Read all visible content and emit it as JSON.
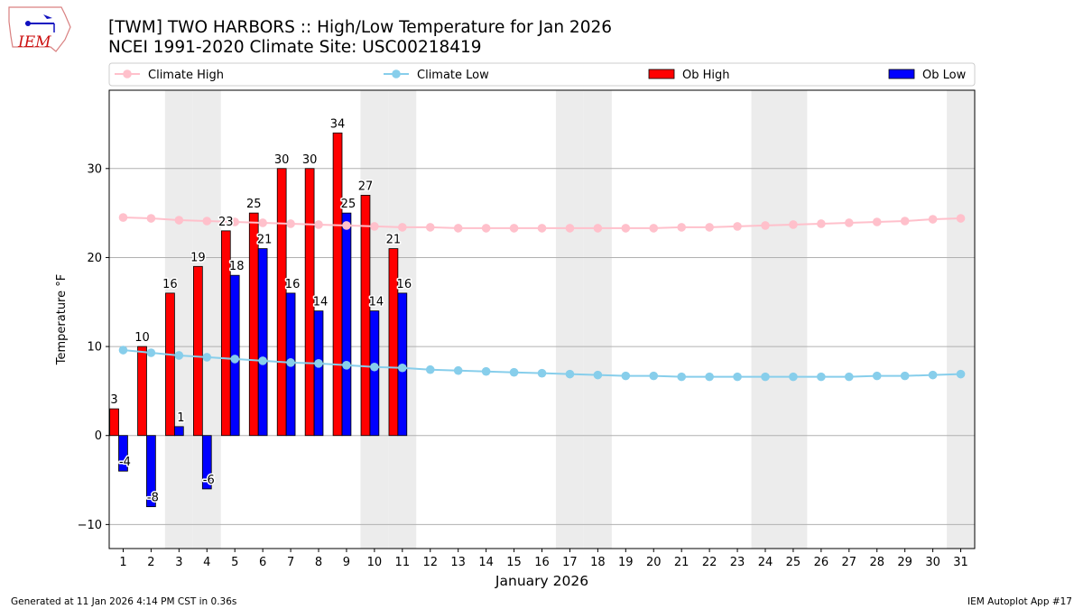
{
  "logo_text": "IEM",
  "title_line1": "[TWM] TWO HARBORS :: High/Low Temperature for Jan 2026",
  "title_line2": "NCEI 1991-2020 Climate Site: USC00218419",
  "footer_left": "Generated at 11 Jan 2026 4:14 PM CST in 0.36s",
  "footer_right": "IEM Autoplot App #17",
  "colors": {
    "climate_high": "#ffc0cb",
    "climate_low": "#87ceeb",
    "ob_high": "#ff0000",
    "ob_low": "#0000ff",
    "weekend": "#ececec",
    "grid": "#b0b0b0"
  },
  "chart_data": {
    "type": "bar",
    "xlabel": "January 2026",
    "ylabel": "Temperature °F",
    "xlim": [
      0.5,
      31.5
    ],
    "ylim": [
      -12.7,
      38.8
    ],
    "yticks": [
      -10,
      0,
      10,
      20,
      30
    ],
    "grid": true,
    "legend_placement": "top",
    "weekend_days": [
      3,
      4,
      10,
      11,
      17,
      18,
      24,
      25,
      31
    ],
    "days": [
      1,
      2,
      3,
      4,
      5,
      6,
      7,
      8,
      9,
      10,
      11,
      12,
      13,
      14,
      15,
      16,
      17,
      18,
      19,
      20,
      21,
      22,
      23,
      24,
      25,
      26,
      27,
      28,
      29,
      30,
      31
    ],
    "legend": [
      "Climate High",
      "Climate Low",
      "Ob High",
      "Ob Low"
    ],
    "series": [
      {
        "name": "Climate High",
        "kind": "line",
        "values": [
          24.5,
          24.4,
          24.2,
          24.1,
          24.0,
          23.9,
          23.8,
          23.7,
          23.6,
          23.5,
          23.4,
          23.4,
          23.3,
          23.3,
          23.3,
          23.3,
          23.3,
          23.3,
          23.3,
          23.3,
          23.4,
          23.4,
          23.5,
          23.6,
          23.7,
          23.8,
          23.9,
          24.0,
          24.1,
          24.3,
          24.4
        ]
      },
      {
        "name": "Climate Low",
        "kind": "line",
        "values": [
          9.6,
          9.3,
          9.0,
          8.8,
          8.6,
          8.4,
          8.2,
          8.1,
          7.9,
          7.7,
          7.6,
          7.4,
          7.3,
          7.2,
          7.1,
          7.0,
          6.9,
          6.8,
          6.7,
          6.7,
          6.6,
          6.6,
          6.6,
          6.6,
          6.6,
          6.6,
          6.6,
          6.7,
          6.7,
          6.8,
          6.9
        ]
      },
      {
        "name": "Ob High",
        "kind": "bar",
        "values": [
          3,
          10,
          16,
          19,
          23,
          25,
          30,
          30,
          34,
          27,
          21
        ],
        "labels": [
          "3",
          "10",
          "16",
          "19",
          "23",
          "25",
          "30",
          "30",
          "34",
          "27",
          "21"
        ]
      },
      {
        "name": "Ob Low",
        "kind": "bar",
        "values": [
          -4,
          -8,
          1,
          -6,
          18,
          21,
          16,
          14,
          25,
          14,
          16
        ],
        "labels": [
          "-4",
          "-8",
          "1",
          "-6",
          "18",
          "21",
          "16",
          "14",
          "25",
          "14",
          "16"
        ]
      }
    ]
  }
}
